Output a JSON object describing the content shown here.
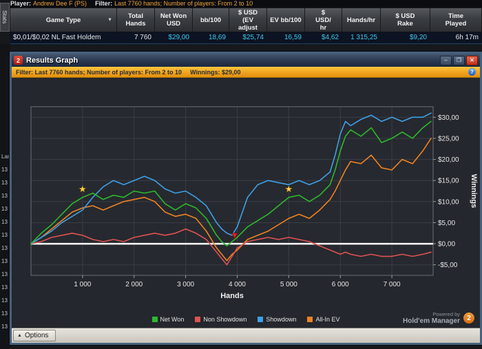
{
  "app": {
    "player_line": {
      "player_label": "Player:",
      "player_name": "Andrew Dee F (PS)",
      "filter_label": "Filter:",
      "filter_value": "Last 7760 hands; Number of players: From 2 to 10"
    },
    "stats_tab": "Stats",
    "left_fragments": [
      "Las",
      "13",
      "13",
      "13",
      "13",
      "13",
      "13",
      "13",
      "13",
      "13",
      "13",
      "13",
      "13",
      "13"
    ]
  },
  "stats_table": {
    "columns": [
      {
        "lines": [
          "Game Type"
        ],
        "width": 155,
        "dropdown_icon": "▼"
      },
      {
        "lines": [
          "Total",
          "Hands"
        ],
        "width": 55
      },
      {
        "lines": [
          "Net Won",
          "USD"
        ],
        "width": 55
      },
      {
        "lines": [
          "bb/100"
        ],
        "width": 53
      },
      {
        "lines": [
          "$ USD",
          "(EV",
          "adjust"
        ],
        "width": 55
      },
      {
        "lines": [
          "EV bb/100"
        ],
        "width": 55
      },
      {
        "lines": [
          "$",
          "USD/",
          "hr"
        ],
        "width": 54
      },
      {
        "lines": [
          "Hands/hr"
        ],
        "width": 56
      },
      {
        "lines": [
          "$ USD",
          "Rake"
        ],
        "width": 72
      },
      {
        "lines": [
          "Time",
          "Played"
        ],
        "width": 75
      }
    ],
    "row": {
      "game_type": "$0,01/$0,02 NL Fast Holdem",
      "values": [
        "7 760",
        "$29,00",
        "18,69",
        "$25,74",
        "16,59",
        "$4,62",
        "1 315,25",
        "$9,20",
        "6h 17m"
      ],
      "value_colors": [
        "#e6e6e6",
        "#3fc9f0",
        "#3fc9f0",
        "#3fc9f0",
        "#3fc9f0",
        "#3fc9f0",
        "#3fc9f0",
        "#3fc9f0",
        "#e6e6e6"
      ]
    }
  },
  "graph_window": {
    "title": "Results Graph",
    "title_icon": "2",
    "window_buttons": {
      "minimize": "–",
      "maximize": "❐",
      "close": "✕"
    },
    "filter_bar": {
      "filter_text": "Filter: Last 7760 hands; Number of players: From 2 to 10",
      "winnings_text": "Winnings: $29,00",
      "help_icon": "?"
    },
    "legend": [
      {
        "label": "Net Won",
        "color": "#2db92d"
      },
      {
        "label": "Non Showdown",
        "color": "#e05252"
      },
      {
        "label": "Showdown",
        "color": "#3fa0e8"
      },
      {
        "label": "All-In EV",
        "color": "#ef8322"
      }
    ],
    "powered_by": {
      "line1": "Powered by",
      "line2": "Hold'em Manager",
      "badge": "2"
    },
    "options_button": "Options",
    "options_arrow": "▲"
  },
  "chart_data": {
    "type": "line",
    "title": "Results Graph",
    "xlabel": "Hands",
    "ylabel": "Winnings",
    "xlim": [
      0,
      7800
    ],
    "ylim": [
      -7.5,
      32.5
    ],
    "grid": true,
    "legend_position": "bottom",
    "x_ticks": [
      {
        "v": 1000,
        "label": "1 000"
      },
      {
        "v": 2000,
        "label": "2 000"
      },
      {
        "v": 3000,
        "label": "3 000"
      },
      {
        "v": 4000,
        "label": "4 000"
      },
      {
        "v": 5000,
        "label": "5 000"
      },
      {
        "v": 6000,
        "label": "6 000"
      },
      {
        "v": 7000,
        "label": "7 000"
      }
    ],
    "y_ticks": [
      {
        "v": 30,
        "label": "$30,00"
      },
      {
        "v": 25,
        "label": "$25,00"
      },
      {
        "v": 20,
        "label": "$20,00"
      },
      {
        "v": 15,
        "label": "$15,00"
      },
      {
        "v": 10,
        "label": "$10,00"
      },
      {
        "v": 5,
        "label": "$5,00"
      },
      {
        "v": 0,
        "label": "$0,00"
      },
      {
        "v": -5,
        "label": "-$5,00"
      }
    ],
    "zero_line": {
      "y": 0,
      "color": "#ffffff"
    },
    "x": [
      0,
      200,
      400,
      600,
      800,
      1000,
      1200,
      1400,
      1600,
      1800,
      2000,
      2200,
      2400,
      2600,
      2800,
      3000,
      3200,
      3400,
      3600,
      3700,
      3800,
      3900,
      4000,
      4200,
      4400,
      4600,
      4800,
      5000,
      5200,
      5400,
      5600,
      5800,
      5900,
      6000,
      6100,
      6200,
      6400,
      6600,
      6800,
      7000,
      7200,
      7400,
      7600,
      7760
    ],
    "series": [
      {
        "name": "Net Won",
        "color": "#2db92d",
        "values": [
          0,
          2.5,
          4.5,
          7,
          9.5,
          11,
          12,
          10.5,
          11.5,
          11,
          12.5,
          12,
          12.5,
          9.5,
          8,
          9.5,
          8.5,
          6,
          2,
          0.5,
          -0.5,
          0.5,
          1.5,
          4,
          5.5,
          7,
          9,
          11,
          11.5,
          10,
          11.5,
          14,
          17.5,
          22,
          25.5,
          27,
          25.5,
          27.5,
          24,
          25,
          26.5,
          25,
          27.5,
          29
        ]
      },
      {
        "name": "Non Showdown",
        "color": "#e05252",
        "values": [
          0,
          0.5,
          1.5,
          2,
          2.5,
          2,
          1,
          0.5,
          1,
          0.5,
          1.5,
          2,
          2.5,
          2,
          2.5,
          3.5,
          2.5,
          1,
          -2,
          -3.5,
          -5,
          -3,
          -1,
          0.5,
          1,
          1.5,
          1,
          1.5,
          1,
          0.5,
          -0.5,
          -1.5,
          -2,
          -2.5,
          -2,
          -2.5,
          -3,
          -2.5,
          -3,
          -3,
          -2.5,
          -3,
          -2.5,
          -2
        ]
      },
      {
        "name": "Showdown",
        "color": "#3fa0e8",
        "values": [
          0,
          1.5,
          3,
          5,
          6.5,
          8,
          11,
          13.5,
          15,
          14,
          15,
          16,
          15,
          13,
          12,
          12.5,
          11,
          9,
          5,
          3.5,
          2.5,
          2,
          4,
          11,
          14,
          15,
          14.5,
          14,
          15,
          14,
          15,
          17,
          21,
          26,
          29,
          28,
          29.5,
          30.5,
          29,
          30,
          29,
          30,
          30,
          31
        ]
      },
      {
        "name": "All-In EV",
        "color": "#ef8322",
        "values": [
          0,
          1.5,
          3.5,
          5.5,
          7.5,
          8.5,
          9,
          8,
          9,
          10,
          10.5,
          11,
          10,
          7.5,
          6.5,
          7,
          6,
          3,
          -1,
          -2.5,
          -4,
          -2.5,
          -1.5,
          1,
          2,
          3,
          4.5,
          6,
          7,
          6,
          8,
          10.5,
          12.5,
          15,
          17.5,
          19.5,
          19,
          21,
          18,
          17.5,
          20,
          19,
          22,
          25
        ]
      }
    ],
    "markers": [
      {
        "type": "star",
        "x": 1000,
        "y": 13,
        "color": "#ffd24a"
      },
      {
        "type": "star",
        "x": 5000,
        "y": 13,
        "color": "#ffd24a"
      },
      {
        "type": "arrow-down",
        "x": 3950,
        "y": 1.2,
        "color": "#e02020"
      }
    ]
  }
}
